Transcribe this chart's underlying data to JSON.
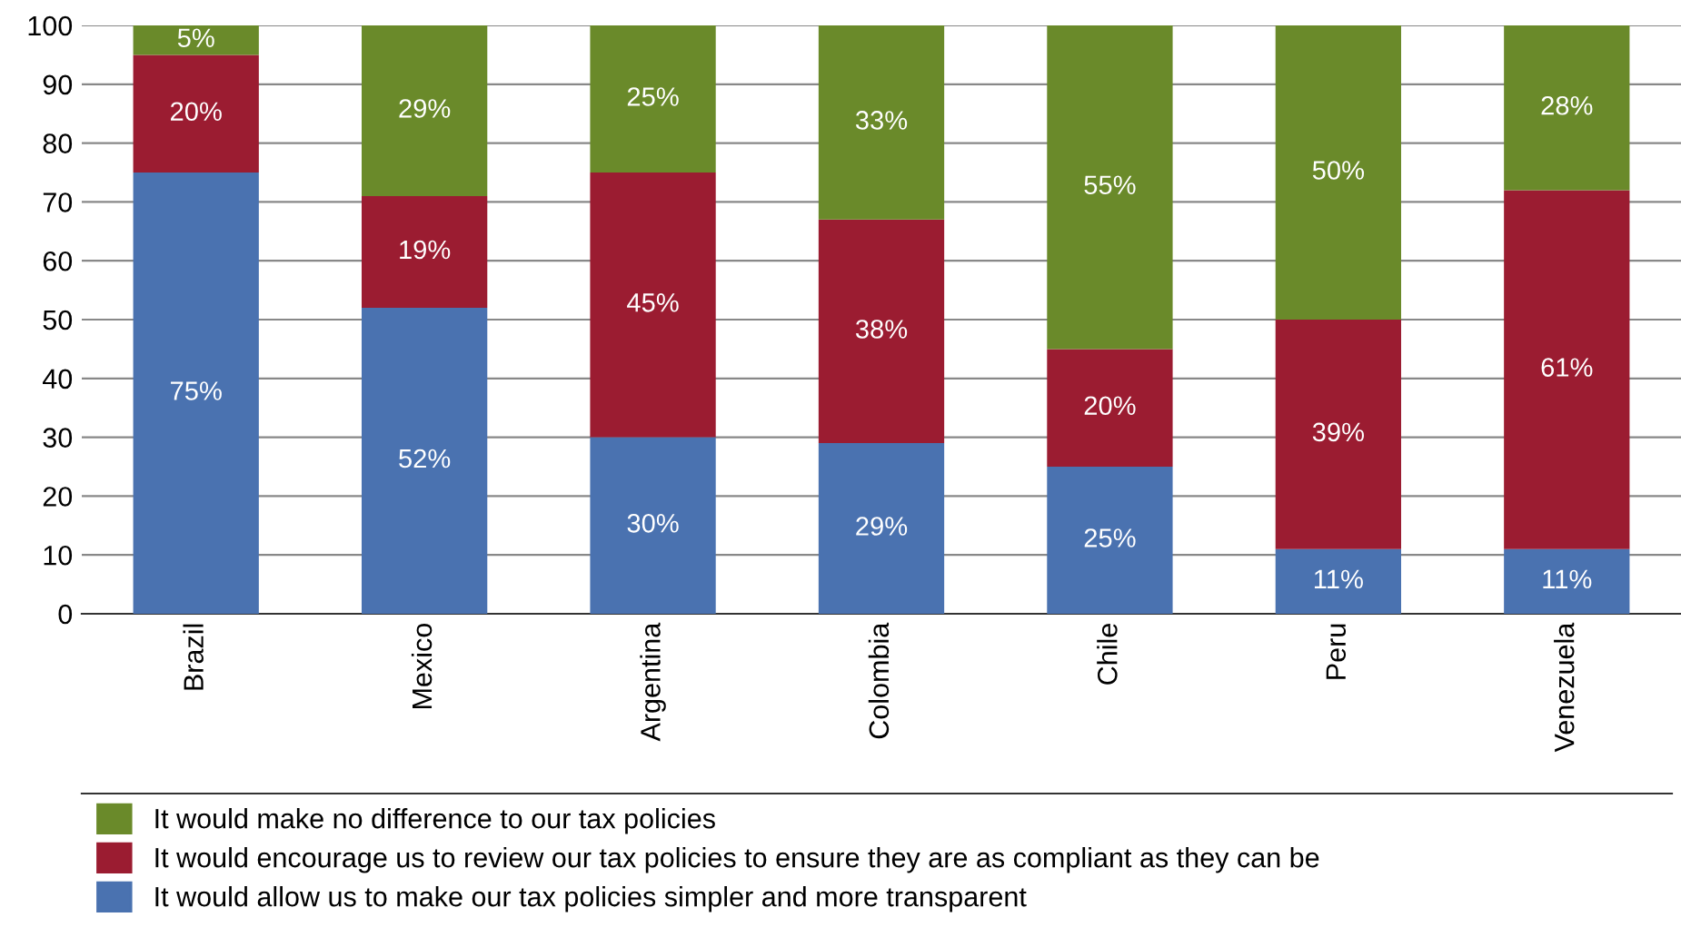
{
  "chart_data": {
    "type": "bar",
    "stacked": true,
    "categories": [
      "Brazil",
      "Mexico",
      "Argentina",
      "Colombia",
      "Chile",
      "Peru",
      "Venezuela"
    ],
    "series": [
      {
        "name": "It would allow us to make our tax policies simpler and more transparent",
        "color": "#4a72b0",
        "values": [
          75,
          52,
          30,
          29,
          25,
          11,
          11
        ],
        "value_labels": [
          "75%",
          "52%",
          "30%",
          "29%",
          "25%",
          "11%",
          "11%"
        ]
      },
      {
        "name": "It would encourage us to review our tax policies to ensure they are as compliant as they can be",
        "color": "#9b1c31",
        "values": [
          20,
          19,
          45,
          38,
          20,
          39,
          61
        ],
        "value_labels": [
          "20%",
          "19%",
          "45%",
          "38%",
          "20%",
          "39%",
          "61%"
        ]
      },
      {
        "name": "It would make no difference to our tax policies",
        "color": "#6a8a2a",
        "values": [
          5,
          29,
          25,
          33,
          55,
          50,
          28
        ],
        "value_labels": [
          "5%",
          "29%",
          "25%",
          "33%",
          "55%",
          "50%",
          "28%"
        ]
      }
    ],
    "ylim": [
      0,
      100
    ],
    "yticks": [
      0,
      10,
      20,
      30,
      40,
      50,
      60,
      70,
      80,
      90,
      100
    ],
    "grid": "y",
    "legend": "bottom"
  }
}
